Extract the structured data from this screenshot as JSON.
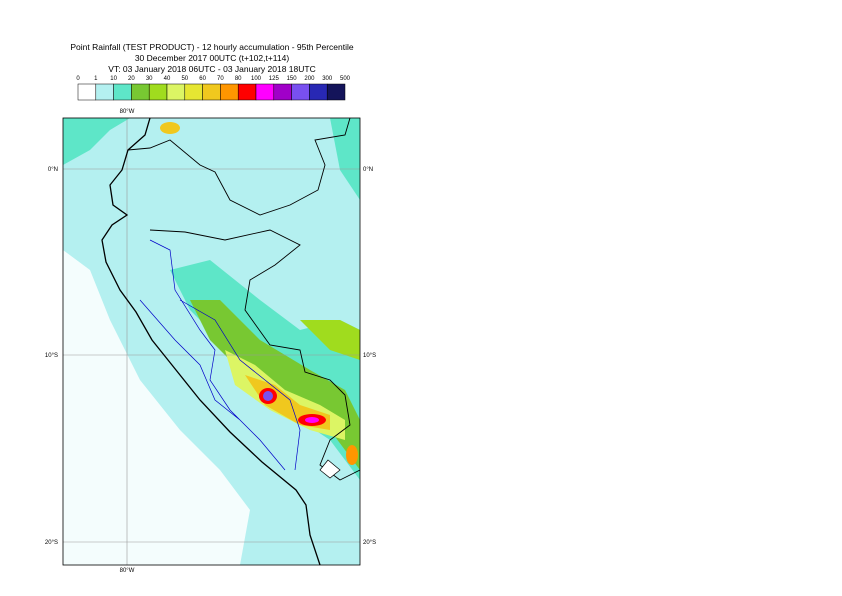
{
  "header": {
    "lines": [
      "Point Rainfall (TEST PRODUCT) - 12 hourly accumulation - 95th Percentile",
      "30 December 2017 00UTC (t+102,t+114)",
      "VT: 03 January 2018 06UTC - 03 January 2018 18UTC"
    ]
  },
  "colorbar": {
    "levels": [
      0,
      1,
      10,
      20,
      30,
      40,
      50,
      60,
      70,
      80,
      100,
      125,
      150,
      200,
      300,
      500
    ],
    "colors": [
      "#ffffff",
      "#b4f0f0",
      "#5ee6c8",
      "#78c832",
      "#a0dc1e",
      "#dcf564",
      "#e6e632",
      "#f0c81e",
      "#ff9600",
      "#ff0000",
      "#ff00ff",
      "#a000c8",
      "#7850f0",
      "#2828b4",
      "#14145a"
    ]
  },
  "map": {
    "lon_labels": [
      "80°W"
    ],
    "lat_labels": [
      "0°N",
      "10°S",
      "20°S"
    ]
  }
}
